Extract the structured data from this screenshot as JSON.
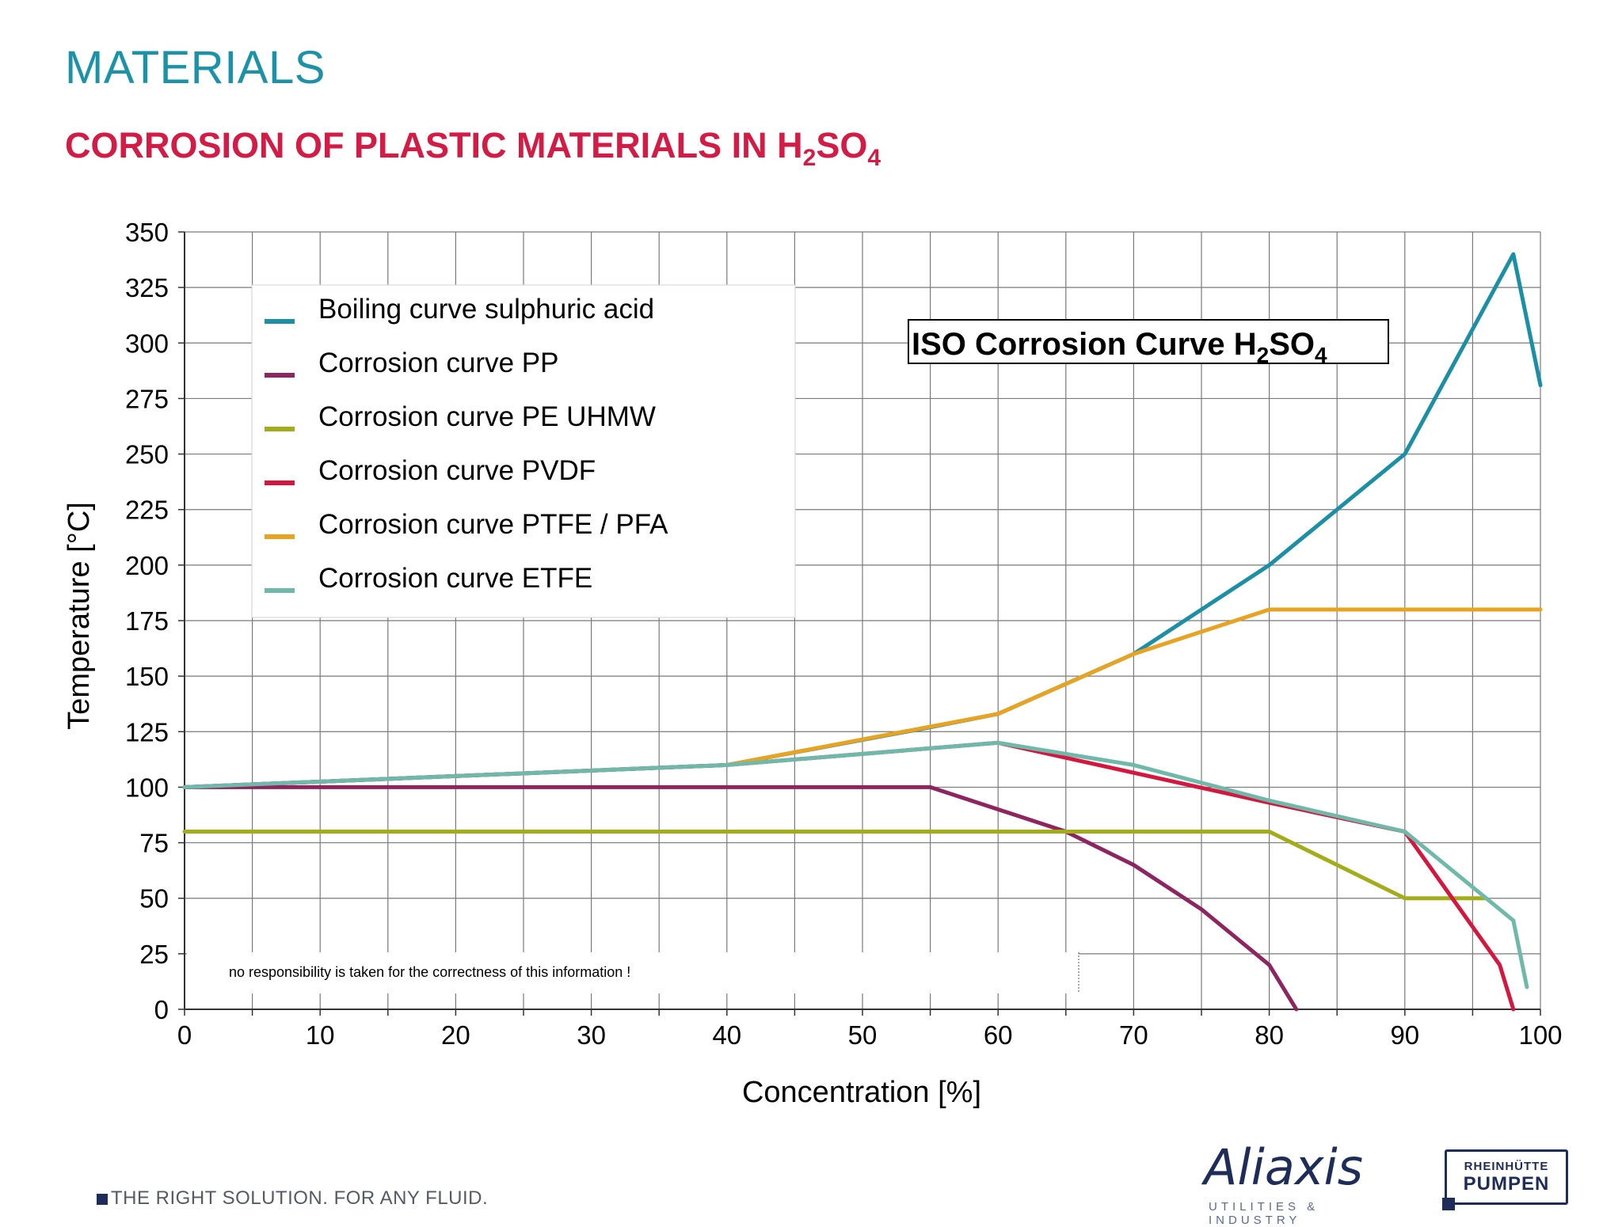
{
  "page": {
    "title": "MATERIALS",
    "subtitle_main": "CORROSION OF PLASTIC MATERIALS IN H",
    "subtitle_sub1": "2",
    "subtitle_mid": "SO",
    "subtitle_sub2": "4",
    "tagline": "THE RIGHT SOLUTION. FOR ANY FLUID.",
    "logo_aliaxis": "Aliaxis",
    "logo_aliaxis_tag": "UTILITIES & INDUSTRY",
    "logo_rheinhuette_line1": "RHEINHÜTTE",
    "logo_rheinhuette_line2": "PUMPEN"
  },
  "chart_data": {
    "type": "line",
    "title_main": "ISO Corrosion Curve H",
    "title_sub1": "2",
    "title_mid": "SO",
    "title_sub2": "4",
    "xlabel": "Concentration [%]",
    "ylabel": "Temperature [°C]",
    "xlim": [
      0,
      100
    ],
    "ylim": [
      0,
      350
    ],
    "x_ticks": [
      0,
      10,
      20,
      30,
      40,
      50,
      60,
      70,
      80,
      90,
      100
    ],
    "y_ticks": [
      0,
      25,
      50,
      75,
      100,
      125,
      150,
      175,
      200,
      225,
      250,
      275,
      300,
      325,
      350
    ],
    "grid": true,
    "legend_position": "top-left",
    "disclaimer": "no responsibility is taken for the correctness of this information !",
    "series": [
      {
        "name": "Boiling curve sulphuric acid",
        "color": "#1a8fa5",
        "points": [
          [
            0,
            100
          ],
          [
            40,
            110
          ],
          [
            55,
            127
          ],
          [
            60,
            133
          ],
          [
            70,
            160
          ],
          [
            80,
            200
          ],
          [
            90,
            250
          ],
          [
            98,
            340
          ],
          [
            100,
            281
          ]
        ]
      },
      {
        "name": "Corrosion curve PP",
        "color": "#8e2460",
        "points": [
          [
            0,
            100
          ],
          [
            55,
            100
          ],
          [
            65,
            80
          ],
          [
            70,
            65
          ],
          [
            75,
            45
          ],
          [
            80,
            20
          ],
          [
            82,
            0
          ]
        ]
      },
      {
        "name": "Corrosion curve PE UHMW",
        "color": "#a3ad1a",
        "points": [
          [
            0,
            80
          ],
          [
            80,
            80
          ],
          [
            90,
            50
          ],
          [
            96,
            50
          ]
        ]
      },
      {
        "name": "Corrosion curve PVDF",
        "color": "#d6163f",
        "points": [
          [
            0,
            100
          ],
          [
            40,
            110
          ],
          [
            60,
            120
          ],
          [
            80,
            93
          ],
          [
            90,
            80
          ],
          [
            97,
            20
          ],
          [
            98,
            0
          ]
        ]
      },
      {
        "name": "Corrosion curve PTFE / PFA",
        "color": "#e8a321",
        "points": [
          [
            40,
            110
          ],
          [
            60,
            133
          ],
          [
            70,
            160
          ],
          [
            80,
            180
          ],
          [
            100,
            180
          ]
        ]
      },
      {
        "name": "Corrosion curve ETFE",
        "color": "#6fb9ab",
        "points": [
          [
            0,
            100
          ],
          [
            40,
            110
          ],
          [
            60,
            120
          ],
          [
            70,
            110
          ],
          [
            80,
            94
          ],
          [
            90,
            80
          ],
          [
            98,
            40
          ],
          [
            99,
            10
          ]
        ]
      }
    ]
  }
}
